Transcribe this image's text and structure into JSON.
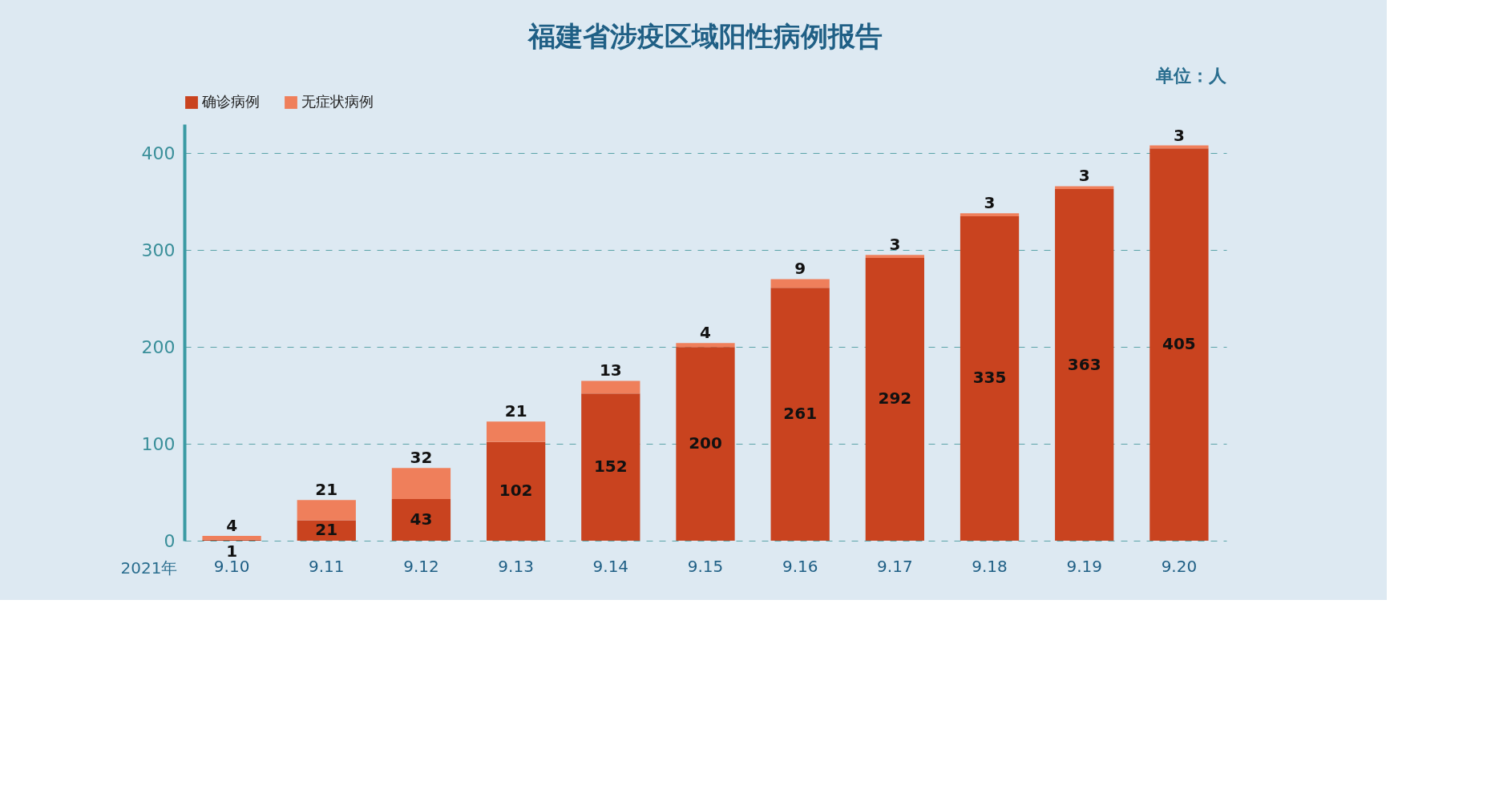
{
  "chart_data": {
    "type": "bar",
    "title": "福建省涉疫区域阳性病例报告",
    "xlabel": "2021年",
    "annotations": [
      "单位：人"
    ],
    "categories": [
      "9.10",
      "9.11",
      "9.12",
      "9.13",
      "9.14",
      "9.15",
      "9.16",
      "9.17",
      "9.18",
      "9.19",
      "9.20"
    ],
    "stacked": true,
    "series": [
      {
        "name": "确诊病例",
        "color": "#c9431f",
        "values": [
          1,
          21,
          43,
          102,
          152,
          200,
          261,
          292,
          335,
          363,
          405
        ]
      },
      {
        "name": "无症状病例",
        "color": "#ef7f5b",
        "values": [
          4,
          21,
          32,
          21,
          13,
          4,
          9,
          3,
          3,
          3,
          3
        ]
      }
    ],
    "ylim": [
      0,
      430
    ],
    "yticks": [
      0,
      100,
      200,
      300,
      400
    ],
    "grid": "y",
    "legend": "top",
    "data_labels": true
  }
}
